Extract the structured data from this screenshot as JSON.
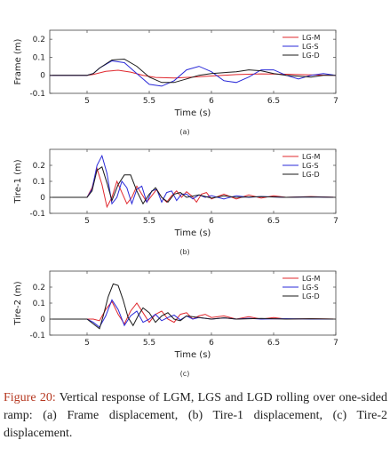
{
  "caption": {
    "label": "Figure 20:",
    "text": " Vertical response of LGM, LGS and LGD rolling over one-sided ramp: (a) Frame displacement, (b) Tire-1 displacement, (c) Tire-2 displacement."
  },
  "colors": {
    "LG-M": "#e0282e",
    "LG-S": "#2a2ad8",
    "LG-D": "#1a1a1a"
  },
  "chart_data": [
    {
      "type": "line",
      "panel_label": "(a)",
      "ylabel": "Frame (m)",
      "xlabel": "Time (s)",
      "xlim": [
        4.7,
        7
      ],
      "ylim": [
        -0.1,
        0.25
      ],
      "x_ticks": [
        5,
        5.5,
        6,
        6.5,
        7
      ],
      "y_ticks": [
        -0.1,
        0,
        0.1,
        0.2
      ],
      "grid": false,
      "legend_position": "top-right",
      "series": [
        {
          "name": "LG-M",
          "x": [
            4.7,
            5.0,
            5.05,
            5.15,
            5.25,
            5.35,
            5.45,
            5.55,
            5.7,
            5.85,
            6.0,
            6.2,
            6.4,
            6.6,
            6.8,
            7.0
          ],
          "y": [
            0,
            0,
            0.005,
            0.022,
            0.028,
            0.018,
            0.0,
            -0.012,
            -0.015,
            -0.01,
            -0.004,
            0.004,
            0.008,
            0.006,
            0.002,
            0.0
          ]
        },
        {
          "name": "LG-S",
          "x": [
            4.7,
            5.0,
            5.05,
            5.1,
            5.2,
            5.3,
            5.4,
            5.5,
            5.6,
            5.7,
            5.8,
            5.9,
            6.0,
            6.1,
            6.2,
            6.3,
            6.4,
            6.5,
            6.6,
            6.7,
            6.8,
            6.9,
            7.0
          ],
          "y": [
            0,
            0,
            0.01,
            0.04,
            0.08,
            0.07,
            0.01,
            -0.05,
            -0.06,
            -0.03,
            0.03,
            0.05,
            0.02,
            -0.03,
            -0.04,
            -0.01,
            0.03,
            0.03,
            0.0,
            -0.02,
            0.0,
            0.01,
            0.0
          ]
        },
        {
          "name": "LG-D",
          "x": [
            4.7,
            5.0,
            5.05,
            5.1,
            5.2,
            5.3,
            5.4,
            5.5,
            5.6,
            5.7,
            5.8,
            5.9,
            6.0,
            6.2,
            6.3,
            6.4,
            6.5,
            6.6,
            6.8,
            6.9,
            7.0
          ],
          "y": [
            0,
            0,
            0.01,
            0.04,
            0.085,
            0.09,
            0.05,
            -0.01,
            -0.04,
            -0.04,
            -0.02,
            0.0,
            0.01,
            0.02,
            0.03,
            0.025,
            0.01,
            0.0,
            -0.01,
            0.0,
            0.0
          ]
        }
      ]
    },
    {
      "type": "line",
      "panel_label": "(b)",
      "ylabel": "Tire-1 (m)",
      "xlabel": "Time (s)",
      "xlim": [
        4.7,
        7
      ],
      "ylim": [
        -0.1,
        0.3
      ],
      "x_ticks": [
        5,
        5.5,
        6,
        6.5,
        7
      ],
      "y_ticks": [
        -0.1,
        0,
        0.1,
        0.2
      ],
      "grid": false,
      "legend_position": "top-right",
      "series": [
        {
          "name": "LG-M",
          "x": [
            4.7,
            5.0,
            5.04,
            5.08,
            5.12,
            5.16,
            5.2,
            5.24,
            5.28,
            5.32,
            5.36,
            5.4,
            5.44,
            5.48,
            5.52,
            5.56,
            5.6,
            5.64,
            5.68,
            5.72,
            5.76,
            5.8,
            5.84,
            5.88,
            5.92,
            5.96,
            6.0,
            6.1,
            6.2,
            6.3,
            6.4,
            6.5,
            6.6,
            6.8,
            7.0
          ],
          "y": [
            0,
            0,
            0.06,
            0.18,
            0.08,
            -0.06,
            0.0,
            0.1,
            0.03,
            -0.04,
            0.0,
            0.07,
            0.02,
            -0.03,
            0.01,
            0.05,
            0.0,
            -0.03,
            0.01,
            0.04,
            0.0,
            0.035,
            0.01,
            -0.03,
            0.02,
            0.03,
            -0.01,
            0.02,
            -0.01,
            0.015,
            -0.005,
            0.01,
            0.0,
            0.005,
            0.0
          ]
        },
        {
          "name": "LG-S",
          "x": [
            4.7,
            5.0,
            5.04,
            5.08,
            5.12,
            5.16,
            5.2,
            5.24,
            5.28,
            5.32,
            5.36,
            5.4,
            5.44,
            5.48,
            5.52,
            5.56,
            5.6,
            5.64,
            5.68,
            5.72,
            5.76,
            5.8,
            5.85,
            5.9,
            5.95,
            6.0,
            6.1,
            6.2,
            6.3,
            6.4,
            6.6,
            6.8,
            7.0
          ],
          "y": [
            0,
            0,
            0.05,
            0.2,
            0.26,
            0.15,
            -0.04,
            0.0,
            0.1,
            0.06,
            -0.04,
            0.05,
            0.07,
            -0.03,
            0.04,
            0.05,
            -0.03,
            0.03,
            0.04,
            -0.02,
            0.02,
            0.02,
            -0.01,
            0.015,
            0.0,
            0.01,
            -0.01,
            0.01,
            0.0,
            0.005,
            0.0,
            0.003,
            0.0
          ]
        },
        {
          "name": "LG-D",
          "x": [
            4.7,
            5.0,
            5.04,
            5.08,
            5.12,
            5.16,
            5.2,
            5.25,
            5.3,
            5.35,
            5.4,
            5.45,
            5.5,
            5.55,
            5.6,
            5.65,
            5.7,
            5.75,
            5.8,
            5.9,
            6.0,
            6.1,
            6.2,
            6.4,
            6.6,
            6.8,
            7.0
          ],
          "y": [
            0,
            0,
            0.04,
            0.17,
            0.19,
            0.09,
            -0.02,
            0.08,
            0.14,
            0.14,
            0.04,
            -0.04,
            0.02,
            0.06,
            0.0,
            -0.03,
            0.02,
            0.03,
            0.0,
            0.015,
            -0.005,
            0.01,
            0.0,
            0.004,
            0.0,
            0.002,
            0.0
          ]
        }
      ]
    },
    {
      "type": "line",
      "panel_label": "(c)",
      "ylabel": "Tire-2 (m)",
      "xlabel": "Time (s)",
      "xlim": [
        4.7,
        7
      ],
      "ylim": [
        -0.1,
        0.3
      ],
      "x_ticks": [
        5,
        5.5,
        6,
        6.5,
        7
      ],
      "y_ticks": [
        -0.1,
        0,
        0.1,
        0.2
      ],
      "grid": false,
      "legend_position": "top-right",
      "series": [
        {
          "name": "LG-M",
          "x": [
            4.7,
            5.0,
            5.05,
            5.1,
            5.15,
            5.2,
            5.25,
            5.3,
            5.35,
            5.4,
            5.45,
            5.5,
            5.55,
            5.6,
            5.65,
            5.7,
            5.75,
            5.8,
            5.85,
            5.9,
            5.95,
            6.0,
            6.1,
            6.2,
            6.3,
            6.4,
            6.5,
            6.6,
            6.8,
            7.0
          ],
          "y": [
            0,
            0,
            0.0,
            -0.01,
            0.06,
            0.11,
            0.03,
            -0.03,
            0.05,
            0.1,
            0.04,
            -0.02,
            0.03,
            0.05,
            0.0,
            -0.02,
            0.03,
            0.04,
            0.0,
            0.02,
            0.03,
            0.01,
            0.02,
            0.0,
            0.015,
            0.0,
            0.01,
            0.0,
            0.003,
            0.0
          ]
        },
        {
          "name": "LG-S",
          "x": [
            4.7,
            5.0,
            5.05,
            5.1,
            5.15,
            5.2,
            5.25,
            5.3,
            5.35,
            5.4,
            5.45,
            5.5,
            5.55,
            5.6,
            5.65,
            5.7,
            5.75,
            5.8,
            5.85,
            5.9,
            6.0,
            6.1,
            6.2,
            6.3,
            6.4,
            6.6,
            6.8,
            7.0
          ],
          "y": [
            0,
            0,
            -0.02,
            -0.05,
            0.02,
            0.12,
            0.06,
            -0.04,
            0.02,
            0.05,
            -0.02,
            0.0,
            0.03,
            -0.01,
            0.01,
            0.025,
            -0.005,
            0.02,
            0.0,
            0.01,
            0.0,
            0.008,
            0.0,
            0.005,
            0.0,
            0.003,
            0.0,
            0.0
          ]
        },
        {
          "name": "LG-D",
          "x": [
            4.7,
            5.0,
            5.05,
            5.1,
            5.13,
            5.17,
            5.21,
            5.25,
            5.29,
            5.33,
            5.37,
            5.41,
            5.45,
            5.5,
            5.55,
            5.6,
            5.65,
            5.7,
            5.75,
            5.8,
            5.9,
            6.0,
            6.1,
            6.2,
            6.4,
            6.6,
            6.8,
            7.0
          ],
          "y": [
            0,
            0,
            -0.03,
            -0.06,
            0.02,
            0.14,
            0.22,
            0.21,
            0.12,
            0.01,
            -0.04,
            0.02,
            0.07,
            0.04,
            -0.02,
            0.02,
            0.04,
            0.0,
            -0.01,
            0.02,
            0.01,
            0.0,
            0.008,
            0.0,
            0.004,
            0.0,
            0.002,
            0.0
          ]
        }
      ]
    }
  ]
}
